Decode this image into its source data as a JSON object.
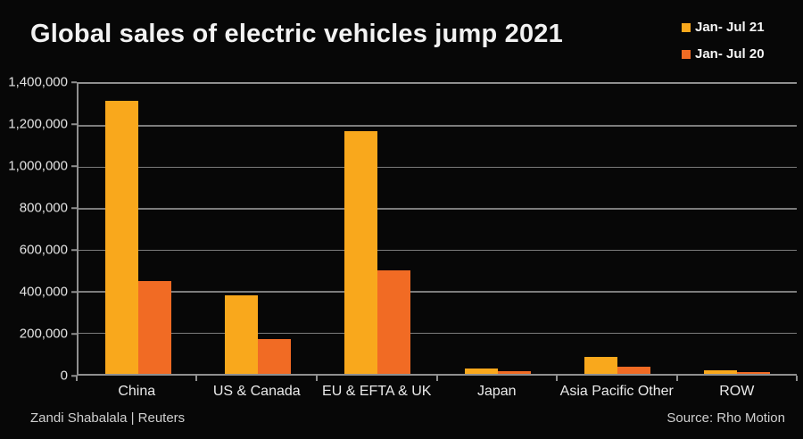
{
  "title": "Global sales of electric vehicles jump 2021",
  "legend": [
    {
      "label": "Jan- Jul 21",
      "color": "#F9A81C",
      "swatch_name": "yellow-square-icon"
    },
    {
      "label": "Jan- Jul 20",
      "color": "#F16B24",
      "swatch_name": "orange-square-icon"
    }
  ],
  "footer": {
    "credit": "Zandi Shabalala | Reuters",
    "source": "Source: Rho Motion"
  },
  "chart_data": {
    "type": "bar",
    "title": "Global sales of electric vehicles jump 2021",
    "categories": [
      "China",
      "US & Canada",
      "EU & EFTA & UK",
      "Japan",
      "Asia Pacific Other",
      "ROW"
    ],
    "series": [
      {
        "name": "Jan- Jul 21",
        "color": "#F9A81C",
        "values": [
          1320000,
          380000,
          1170000,
          25000,
          80000,
          18000
        ]
      },
      {
        "name": "Jan- Jul 20",
        "color": "#F16B24",
        "values": [
          450000,
          170000,
          500000,
          12000,
          33000,
          9000
        ]
      }
    ],
    "xlabel": "",
    "ylabel": "",
    "ylim": [
      0,
      1400000
    ],
    "ytick_step": 200000,
    "ytick_labels": [
      "1,400,000",
      "1,200,000",
      "1,000,000",
      "800,000",
      "600,000",
      "400,000",
      "200,000",
      "0"
    ],
    "grid": true,
    "gridlines_horizontal": 6,
    "legend_position": "top-right",
    "background": "#070707",
    "text_color": "#eaeaea"
  }
}
